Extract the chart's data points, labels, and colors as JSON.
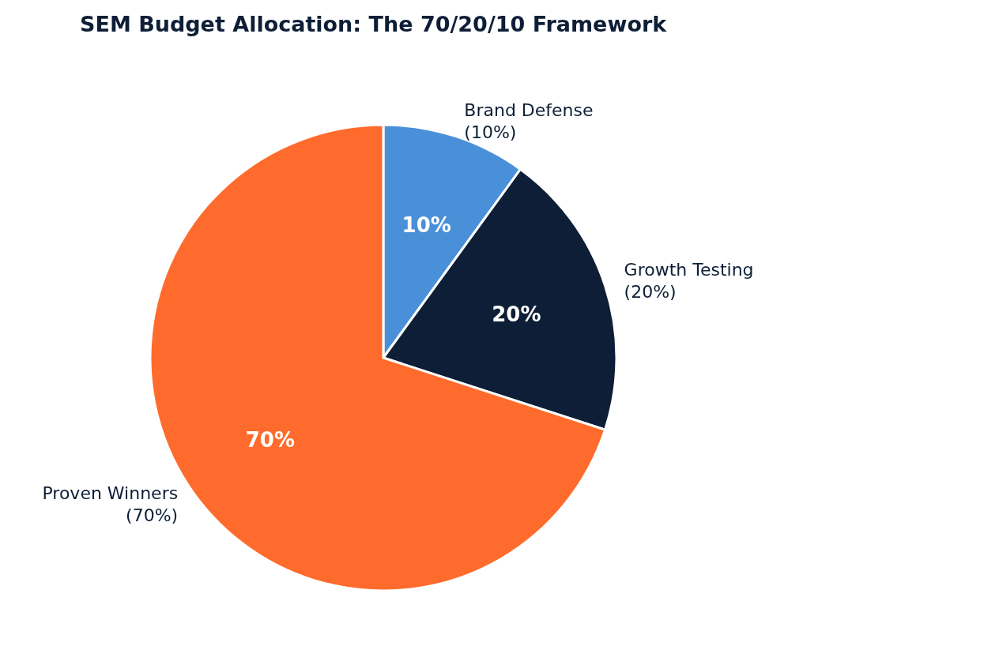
{
  "chart_data": {
    "type": "pie",
    "title": "SEM Budget Allocation: The 70/20/10 Framework",
    "categories": [
      "Brand Defense\n(10%)",
      "Growth Testing\n(20%)",
      "Proven Winners\n(70%)"
    ],
    "values": [
      10,
      20,
      70
    ],
    "value_labels": [
      "10%",
      "20%",
      "70%"
    ],
    "colors": [
      "#4a90d9",
      "#0d1e36",
      "#ff6b2c"
    ],
    "legend": false
  }
}
